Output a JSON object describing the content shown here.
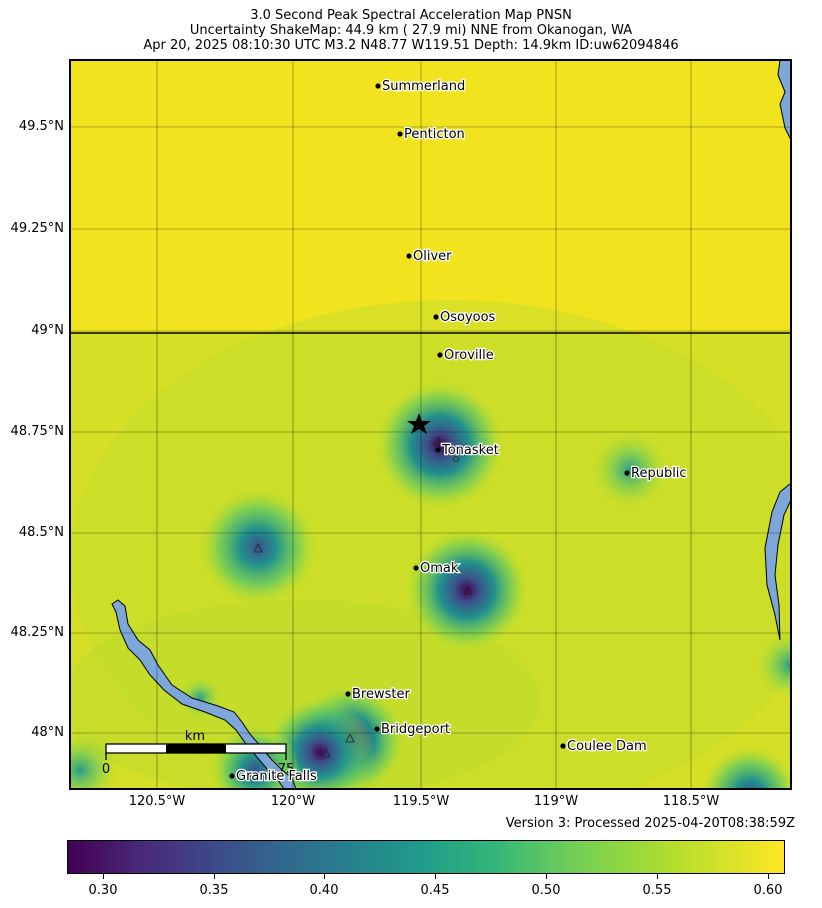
{
  "title": {
    "line1": "3.0 Second Peak Spectral Acceleration Map PNSN",
    "line2": "Uncertainty ShakeMap: 44.9 km (  27.9 mi) NNE from Okanogan, WA",
    "line3": "Apr 20, 2025 08:10:30 UTC M3.2 N48.77 W119.51 Depth: 14.9km ID:uw62094846"
  },
  "lat_labels": [
    "49.5°N",
    "49.25°N",
    "49°N",
    "48.75°N",
    "48.5°N",
    "48.25°N",
    "48°N"
  ],
  "lon_labels": [
    "120.5°W",
    "120°W",
    "119.5°W",
    "119°W",
    "118.5°W"
  ],
  "cities": [
    "Summerland",
    "Penticton",
    "Oliver",
    "Osoyoos",
    "Oroville",
    "Tonasket",
    "Republic",
    "Omak",
    "Brewster",
    "Bridgeport",
    "Coulee Dam",
    "Granite Falls"
  ],
  "scalebar": {
    "unit": "km",
    "start": "0",
    "end": "75"
  },
  "version": "Version 3: Processed 2025-04-20T08:38:59Z",
  "colorbar": {
    "ticks": [
      "0.30",
      "0.35",
      "0.40",
      "0.45",
      "0.50",
      "0.55",
      "0.60"
    ],
    "colormap": "viridis"
  },
  "colors": {
    "water": "#7da6d9",
    "epicenter": "#000000",
    "border": "#000000"
  }
}
